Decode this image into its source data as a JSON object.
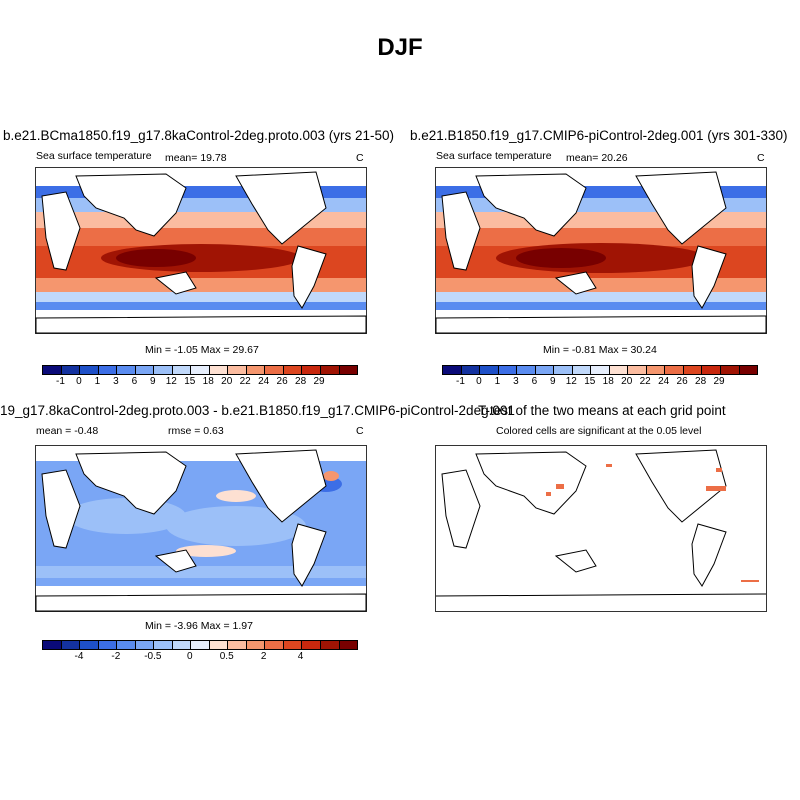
{
  "title": "DJF",
  "panels": [
    {
      "title": "b.e21.BCma1850.f19_g17.8kaControl-2deg.proto.003 (yrs 21-50)",
      "left_label": "Sea surface temperature",
      "mean_label": "mean=  19.78",
      "units": "C",
      "minmax": "Min =  -1.05 Max =  29.67"
    },
    {
      "title": "b.e21.B1850.f19_g17.CMIP6-piControl-2deg.001 (yrs 301-330)",
      "left_label": "Sea surface temperature",
      "mean_label": "mean=  20.26",
      "units": "C",
      "minmax": "Min =  -0.81 Max =  30.24"
    },
    {
      "title": "19_g17.8kaControl-2deg.proto.003 - b.e21.B1850.f19_g17.CMIP6-piControl-2deg.001",
      "left_label": "mean =  -0.48",
      "mid_label": "rmse =   0.63",
      "units": "C",
      "minmax": "Min =  -3.96 Max =  1.97"
    },
    {
      "title": "T-test of the two means at each grid point",
      "subtitle": "Colored cells are significant at the 0.05 level"
    }
  ],
  "chart_data": [
    {
      "type": "heatmap",
      "name": "abs-sst-colorbar",
      "colors": [
        "#0a0a78",
        "#1432a0",
        "#1e50c8",
        "#3c6ee6",
        "#5a8cf0",
        "#7aa6f5",
        "#9cc0f8",
        "#c0d8fa",
        "#e6eefc",
        "#fde0d2",
        "#fbbca0",
        "#f5966e",
        "#ec6e46",
        "#dc4620",
        "#c8280e",
        "#a01404",
        "#780000"
      ],
      "tick_labels": [
        "-1",
        "0",
        "1",
        "3",
        "6",
        "9",
        "12",
        "15",
        "18",
        "20",
        "22",
        "24",
        "26",
        "28",
        "29"
      ]
    },
    {
      "type": "heatmap",
      "name": "diff-sst-colorbar",
      "colors": [
        "#0a0a78",
        "#1432a0",
        "#1e50c8",
        "#3c6ee6",
        "#5a8cf0",
        "#7aa6f5",
        "#9cc0f8",
        "#c0d8fa",
        "#e6eefc",
        "#fde0d2",
        "#fbbca0",
        "#f5966e",
        "#ec6e46",
        "#dc4620",
        "#c8280e",
        "#a01404",
        "#780000"
      ],
      "tick_labels": [
        "-4",
        "-2",
        "-0.5",
        "0",
        "0.5",
        "2",
        "4"
      ]
    }
  ]
}
